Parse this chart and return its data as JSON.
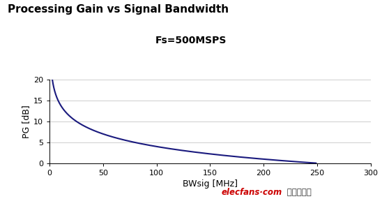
{
  "title_line1": "Processing Gain vs Signal Bandwidth",
  "title_line2": "Fs=500MSPS",
  "xlabel": "BWsig [MHz]",
  "ylabel": "PG [dB]",
  "xlim": [
    0,
    300
  ],
  "ylim": [
    0,
    20
  ],
  "xticks": [
    0,
    50,
    100,
    150,
    200,
    250,
    300
  ],
  "yticks": [
    0,
    5,
    10,
    15,
    20
  ],
  "Fs_MSPS": 500,
  "BW_start": 1.0,
  "BW_end": 249.0,
  "line_color": "#1a1a7e",
  "line_width": 1.5,
  "bg_color": "#ffffff",
  "watermark_red": "elecfans·com",
  "watermark_black": " 电子发烧友",
  "watermark_color_red": "#cc0000",
  "watermark_color_black": "#333333",
  "title_fontsize": 11,
  "subtitle_fontsize": 10,
  "axis_label_fontsize": 9,
  "tick_fontsize": 8,
  "grid_color": "#bbbbbb",
  "grid_linewidth": 0.5
}
